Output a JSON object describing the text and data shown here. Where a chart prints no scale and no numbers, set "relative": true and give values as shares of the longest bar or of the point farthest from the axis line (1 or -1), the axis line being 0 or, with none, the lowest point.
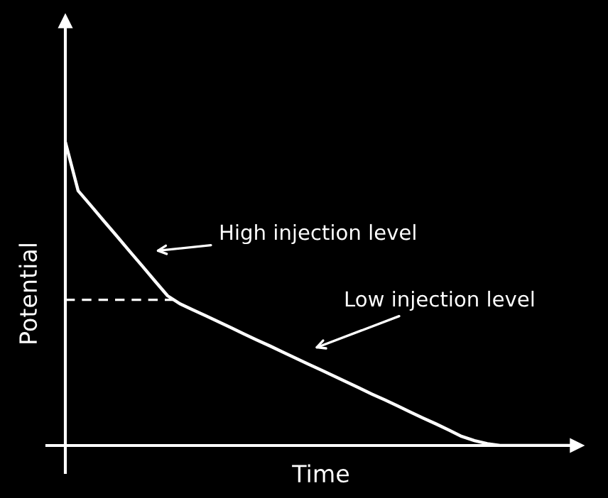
{
  "chart_data": {
    "type": "line",
    "relative": true,
    "xlabel": "Time",
    "ylabel": "Potential",
    "categories": [
      null,
      null,
      null,
      null,
      null,
      null,
      null,
      null,
      null,
      null,
      null,
      null,
      null,
      null,
      null,
      null,
      null,
      null,
      null,
      null,
      null,
      null,
      null,
      null,
      null,
      null,
      null,
      null,
      null,
      null,
      null,
      null,
      null,
      null,
      null,
      null,
      null,
      null,
      null,
      null,
      null
    ],
    "series": [
      {
        "color": "#ffffff",
        "values": [
          1.0,
          0.839,
          0.79,
          0.74,
          0.691,
          0.641,
          0.592,
          0.542,
          0.493,
          0.466,
          0.446,
          0.427,
          0.407,
          0.387,
          0.367,
          0.347,
          0.328,
          0.308,
          0.288,
          0.268,
          0.249,
          0.229,
          0.209,
          0.189,
          0.169,
          0.15,
          0.13,
          0.11,
          0.09,
          0.071,
          0.051,
          0.03,
          0.016,
          0.006,
          0,
          0,
          0,
          0,
          0,
          0,
          0
        ]
      }
    ],
    "ref_lines": [
      {
        "axis": "y",
        "value": 0.48,
        "color": "#ffffff",
        "line_style": "dashed"
      }
    ],
    "annotations": [
      "High injection level",
      "Low injection level"
    ],
    "line_style": "solid"
  }
}
